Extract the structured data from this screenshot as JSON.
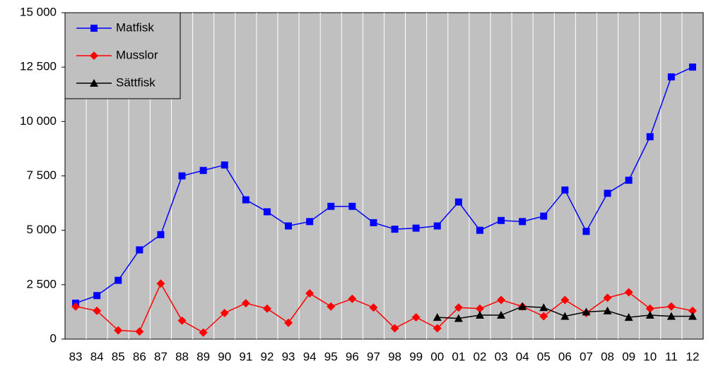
{
  "chart_data": {
    "type": "line",
    "categories": [
      "83",
      "84",
      "85",
      "86",
      "87",
      "88",
      "89",
      "90",
      "91",
      "92",
      "93",
      "94",
      "95",
      "96",
      "97",
      "98",
      "99",
      "00",
      "01",
      "02",
      "03",
      "04",
      "05",
      "06",
      "07",
      "08",
      "09",
      "10",
      "11",
      "12"
    ],
    "series": [
      {
        "name": "Matfisk",
        "color": "#0000ff",
        "marker": "square",
        "values": [
          1650,
          2000,
          2700,
          4100,
          4800,
          7500,
          7750,
          8000,
          6400,
          5850,
          5200,
          5400,
          6100,
          6100,
          5350,
          5050,
          5100,
          5200,
          6300,
          5000,
          5450,
          5400,
          5650,
          6850,
          4950,
          6700,
          7300,
          9300,
          12050,
          12500
        ]
      },
      {
        "name": "Musslor",
        "color": "#ff0000",
        "marker": "diamond",
        "values": [
          1500,
          1300,
          400,
          350,
          2550,
          850,
          300,
          1200,
          1650,
          1400,
          750,
          2100,
          1500,
          1850,
          1450,
          500,
          1000,
          500,
          1450,
          1400,
          1800,
          1500,
          1050,
          1800,
          1200,
          1900,
          2150,
          1400,
          1500,
          1300
        ]
      },
      {
        "name": "Sättfisk",
        "color": "#000000",
        "marker": "triangle",
        "values": [
          null,
          null,
          null,
          null,
          null,
          null,
          null,
          null,
          null,
          null,
          null,
          null,
          null,
          null,
          null,
          null,
          null,
          1000,
          950,
          1100,
          1100,
          1500,
          1450,
          1050,
          1250,
          1300,
          1000,
          1100,
          1050,
          1050
        ]
      }
    ],
    "ylim": [
      0,
      15000
    ],
    "yticks": [
      0,
      {
        "value": 2500,
        "label": "2 500"
      },
      {
        "value": 5000,
        "label": "5 000"
      },
      {
        "value": 7500,
        "label": "7 500"
      },
      {
        "value": 10000,
        "label": "10 000"
      },
      {
        "value": 12500,
        "label": "12 500"
      },
      {
        "value": 15000,
        "label": "15 000"
      }
    ],
    "legend": "upper left",
    "plot_color": "#c0c0c0"
  }
}
